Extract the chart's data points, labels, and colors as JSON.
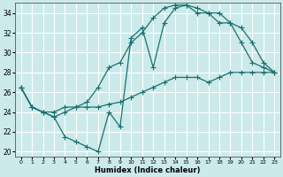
{
  "xlabel": "Humidex (Indice chaleur)",
  "bg_color": "#cceaea",
  "grid_color": "#b0d8d8",
  "line_color": "#1a7070",
  "xlim": [
    -0.5,
    23.5
  ],
  "ylim": [
    19.5,
    35.0
  ],
  "yticks": [
    20,
    22,
    24,
    26,
    28,
    30,
    32,
    34
  ],
  "xticks": [
    0,
    1,
    2,
    3,
    4,
    5,
    6,
    7,
    8,
    9,
    10,
    11,
    12,
    13,
    14,
    15,
    16,
    17,
    18,
    19,
    20,
    21,
    22,
    23
  ],
  "series1_x": [
    0,
    1,
    2,
    3,
    4,
    5,
    6,
    7,
    8,
    9,
    10,
    11,
    12,
    13,
    14,
    15,
    16,
    17,
    18,
    19,
    20,
    21,
    22,
    23
  ],
  "series1_y": [
    26.5,
    24.5,
    24.0,
    24.0,
    24.5,
    24.5,
    24.5,
    24.5,
    24.8,
    25.0,
    25.5,
    26.0,
    26.5,
    27.0,
    27.5,
    27.5,
    27.5,
    27.0,
    27.5,
    28.0,
    28.0,
    28.0,
    28.0,
    28.0
  ],
  "series2_x": [
    0,
    1,
    2,
    3,
    4,
    5,
    6,
    7,
    8,
    9,
    10,
    11,
    12,
    13,
    14,
    15,
    16,
    17,
    18,
    19,
    20,
    21,
    22,
    23
  ],
  "series2_y": [
    26.5,
    24.5,
    24.0,
    23.5,
    21.5,
    21.0,
    20.5,
    20.0,
    24.0,
    22.5,
    31.5,
    32.5,
    28.5,
    33.0,
    34.5,
    34.8,
    34.5,
    34.0,
    34.0,
    33.0,
    31.0,
    29.0,
    28.5,
    28.0
  ],
  "series3_x": [
    0,
    1,
    2,
    3,
    4,
    5,
    6,
    7,
    8,
    9,
    10,
    11,
    12,
    13,
    14,
    15,
    16,
    17,
    18,
    19,
    20,
    21,
    22,
    23
  ],
  "series3_y": [
    26.5,
    24.5,
    24.0,
    23.5,
    24.0,
    24.5,
    25.0,
    26.5,
    28.5,
    29.0,
    31.0,
    32.0,
    33.5,
    34.5,
    34.8,
    34.8,
    34.0,
    34.0,
    33.0,
    33.0,
    32.5,
    31.0,
    29.0,
    28.0
  ]
}
